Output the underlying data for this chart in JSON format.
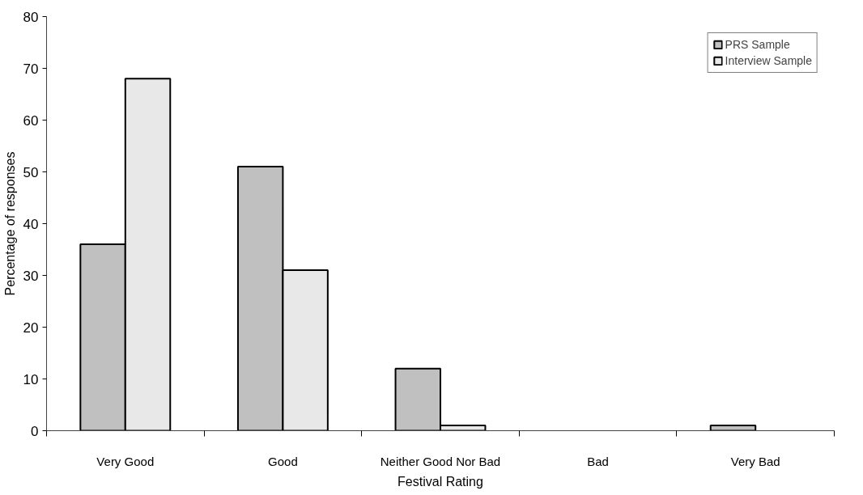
{
  "chart_data": {
    "type": "bar",
    "xlabel": "Festival Rating",
    "ylabel": "Percentage of responses",
    "categories": [
      "Very Good",
      "Good",
      "Neither Good Nor Bad",
      "Bad",
      "Very Bad"
    ],
    "series": [
      {
        "name": "PRS Sample",
        "color": "#c0c0c0",
        "values": [
          36,
          51,
          12,
          0,
          1
        ]
      },
      {
        "name": "Interview Sample",
        "color": "#e8e8e8",
        "values": [
          68,
          31,
          1,
          0,
          0
        ]
      }
    ],
    "ylim": [
      0,
      80
    ],
    "yticks": [
      0,
      10,
      20,
      30,
      40,
      50,
      60,
      70,
      80
    ],
    "grid": false,
    "legend": "top right"
  }
}
